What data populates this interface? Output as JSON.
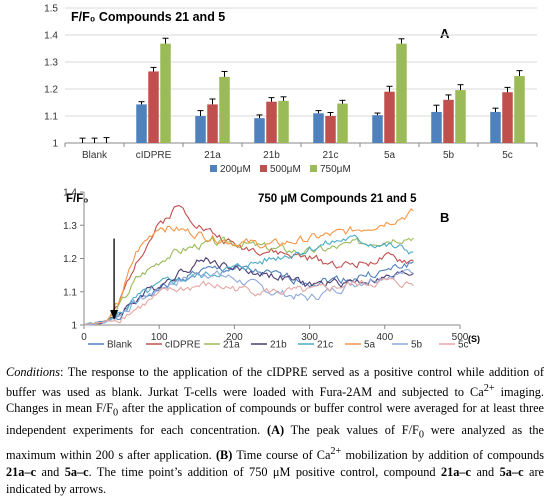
{
  "chart_data": [
    {
      "type": "bar",
      "title": "F/F₀ Compounds 21 and 5",
      "panel_label": "A",
      "categories": [
        "Blank",
        "cIDPRE",
        "21a",
        "21b",
        "21c",
        "5a",
        "5b",
        "5c"
      ],
      "series": [
        {
          "name": "200μM",
          "color": "#4F81BD",
          "values": [
            1.0,
            1.143,
            1.1,
            1.092,
            1.11,
            1.103,
            1.115,
            1.115
          ],
          "errors": [
            0.018,
            0.01,
            0.02,
            0.012,
            0.01,
            0.008,
            0.025,
            0.014
          ]
        },
        {
          "name": "500μM",
          "color": "#C0504D",
          "values": [
            1.0,
            1.265,
            1.143,
            1.153,
            1.1,
            1.19,
            1.16,
            1.188
          ],
          "errors": [
            0.018,
            0.015,
            0.02,
            0.015,
            0.013,
            0.02,
            0.018,
            0.018
          ]
        },
        {
          "name": "750μM",
          "color": "#9BBB59",
          "values": [
            1.0,
            1.368,
            1.245,
            1.156,
            1.146,
            1.368,
            1.196,
            1.248
          ],
          "errors": [
            0.02,
            0.02,
            0.02,
            0.015,
            0.012,
            0.018,
            0.02,
            0.02
          ]
        }
      ],
      "ylim": [
        1,
        1.5
      ],
      "yticks": [
        "1",
        "1.1",
        "1.2",
        "1.3",
        "1.4",
        "1.5"
      ],
      "legend_position": "bottom"
    },
    {
      "type": "line",
      "title": "750 μM  Compounds 21  and 5",
      "ylabel": "F/F₀",
      "xlabel": "(S)",
      "panel_label": "B",
      "xlim": [
        0,
        500
      ],
      "ylim": [
        1,
        1.4
      ],
      "xticks": [
        "0",
        "100",
        "200",
        "300",
        "400",
        "500"
      ],
      "yticks": [
        "1",
        "1.1",
        "1.2",
        "1.3",
        "1.4"
      ],
      "arrow_time": 40,
      "legend_position": "bottom",
      "series": [
        {
          "name": "Blank",
          "color": "#4F81BD",
          "seed": 1,
          "x": [
            0,
            30,
            45,
            70,
            100,
            150,
            200,
            250,
            300,
            350,
            400,
            440
          ],
          "y": [
            1.0,
            1.01,
            1.03,
            1.07,
            1.11,
            1.16,
            1.17,
            1.15,
            1.13,
            1.14,
            1.16,
            1.19
          ]
        },
        {
          "name": "cIDPRE",
          "color": "#C0504D",
          "seed": 2,
          "x": [
            0,
            30,
            45,
            70,
            100,
            125,
            160,
            200,
            250,
            300,
            350,
            400,
            440
          ],
          "y": [
            1.0,
            1.01,
            1.05,
            1.2,
            1.3,
            1.36,
            1.29,
            1.24,
            1.22,
            1.2,
            1.18,
            1.2,
            1.19
          ]
        },
        {
          "name": "21a",
          "color": "#9BBB59",
          "seed": 3,
          "x": [
            0,
            30,
            45,
            70,
            110,
            150,
            200,
            250,
            300,
            350,
            400,
            440
          ],
          "y": [
            1.0,
            1.01,
            1.05,
            1.14,
            1.21,
            1.24,
            1.25,
            1.23,
            1.22,
            1.24,
            1.26,
            1.27
          ]
        },
        {
          "name": "21b",
          "color": "#4B3C74",
          "seed": 4,
          "x": [
            0,
            30,
            45,
            70,
            120,
            160,
            200,
            250,
            300,
            350,
            400,
            440
          ],
          "y": [
            1.0,
            1.01,
            1.03,
            1.08,
            1.15,
            1.2,
            1.17,
            1.15,
            1.12,
            1.13,
            1.14,
            1.16
          ]
        },
        {
          "name": "21c",
          "color": "#4BACC6",
          "seed": 5,
          "x": [
            0,
            30,
            45,
            70,
            110,
            160,
            200,
            250,
            300,
            350,
            400,
            440
          ],
          "y": [
            1.0,
            1.01,
            1.03,
            1.08,
            1.13,
            1.15,
            1.17,
            1.2,
            1.23,
            1.26,
            1.24,
            1.22
          ]
        },
        {
          "name": "5a",
          "color": "#F79646",
          "seed": 6,
          "x": [
            0,
            30,
            45,
            70,
            100,
            140,
            200,
            250,
            300,
            350,
            400,
            440
          ],
          "y": [
            1.0,
            1.01,
            1.06,
            1.22,
            1.3,
            1.28,
            1.25,
            1.24,
            1.26,
            1.28,
            1.31,
            1.34
          ]
        },
        {
          "name": "5b",
          "color": "#8EA9DB",
          "seed": 7,
          "x": [
            0,
            30,
            45,
            70,
            110,
            160,
            200,
            250,
            300,
            350,
            400,
            440
          ],
          "y": [
            1.0,
            1.01,
            1.03,
            1.07,
            1.12,
            1.16,
            1.14,
            1.1,
            1.08,
            1.12,
            1.15,
            1.16
          ]
        },
        {
          "name": "5c",
          "color": "#E6A7A5",
          "seed": 8,
          "x": [
            0,
            30,
            45,
            70,
            110,
            160,
            200,
            250,
            300,
            350,
            400,
            440
          ],
          "y": [
            1.0,
            1.01,
            1.02,
            1.05,
            1.1,
            1.12,
            1.11,
            1.1,
            1.1,
            1.12,
            1.13,
            1.12
          ]
        }
      ]
    }
  ],
  "caption": {
    "conditions_label": "Conditions",
    "seg1": ": The response to the application of the cIDPRE served as a positive control while addition of buffer was used as blank. Jurkat T-cells were loaded with Fura-2AM and subjected to Ca",
    "sup1": "2+",
    "seg2": " imaging. Changes in mean F/F",
    "sub1": "0",
    "seg3": " after the application of compounds or buffer control were averaged for at least three independent experiments for each concentration. ",
    "label_a": "(A)",
    "seg4": " The peak values of F/F",
    "sub2": "0",
    "seg5": " were analyzed as the maximum within 200 s after application. ",
    "label_b": "(B)",
    "seg6": " Time course of Ca",
    "sup2": "2+",
    "seg7": " mobilization by addition of compounds ",
    "cmp1": "21a–c",
    "seg8": " and ",
    "cmp2": "5a–c",
    "seg9": ". The time point’s addition of 750 μM positive control, compound ",
    "cmp3": "21a–c",
    "seg10": " and ",
    "cmp4": "5a–c",
    "seg11": " are indicated by arrows."
  }
}
